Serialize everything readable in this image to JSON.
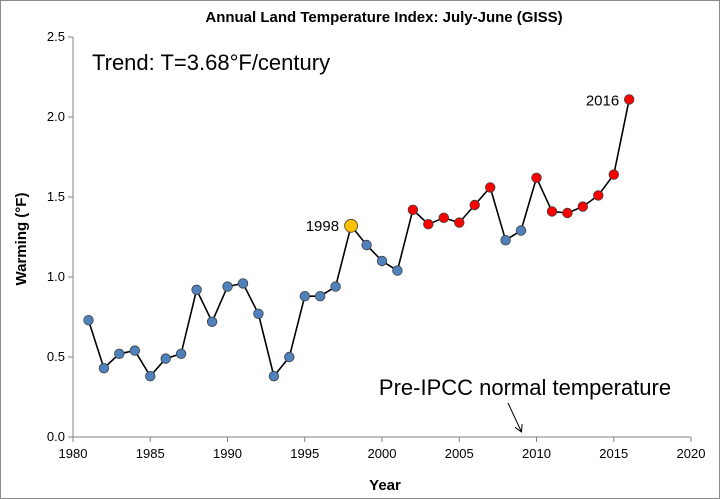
{
  "chart_data": {
    "type": "line",
    "title": "Annual Land Temperature Index: July-June (GISS)",
    "xlabel": "Year",
    "ylabel": "Warming (°F)",
    "xlim": [
      1980,
      2020
    ],
    "ylim": [
      0.0,
      2.5
    ],
    "x_ticks": [
      1980,
      1985,
      1990,
      1995,
      2000,
      2005,
      2010,
      2015,
      2020
    ],
    "y_ticks": [
      "0.0",
      "0.5",
      "1.0",
      "1.5",
      "2.0",
      "2.5"
    ],
    "grid": false,
    "legend": "none",
    "series": [
      {
        "x": [
          1981,
          1982,
          1983,
          1984,
          1985,
          1986,
          1987,
          1988,
          1989,
          1990,
          1991,
          1992,
          1993,
          1994,
          1995,
          1996,
          1997,
          1998,
          1999,
          2000,
          2001,
          2002,
          2003,
          2004,
          2005,
          2006,
          2007,
          2008,
          2009,
          2010,
          2011,
          2012,
          2013,
          2014,
          2015,
          2016
        ],
        "values": [
          0.73,
          0.43,
          0.52,
          0.54,
          0.38,
          0.49,
          0.52,
          0.92,
          0.72,
          0.94,
          0.96,
          0.77,
          0.38,
          0.5,
          0.88,
          0.88,
          0.94,
          1.32,
          1.2,
          1.1,
          1.04,
          1.42,
          1.33,
          1.37,
          1.34,
          1.45,
          1.56,
          1.23,
          1.29,
          1.62,
          1.41,
          1.4,
          1.44,
          1.51,
          1.64,
          2.11
        ],
        "point_colors": [
          "#4f81bd",
          "#4f81bd",
          "#4f81bd",
          "#4f81bd",
          "#4f81bd",
          "#4f81bd",
          "#4f81bd",
          "#4f81bd",
          "#4f81bd",
          "#4f81bd",
          "#4f81bd",
          "#4f81bd",
          "#4f81bd",
          "#4f81bd",
          "#4f81bd",
          "#4f81bd",
          "#4f81bd",
          "#ffc000",
          "#4f81bd",
          "#4f81bd",
          "#4f81bd",
          "#ff0000",
          "#ff0000",
          "#ff0000",
          "#ff0000",
          "#ff0000",
          "#ff0000",
          "#4f81bd",
          "#4f81bd",
          "#ff0000",
          "#ff0000",
          "#ff0000",
          "#ff0000",
          "#ff0000",
          "#ff0000",
          "#ff0000"
        ]
      }
    ],
    "annotations": [
      {
        "text": "Trend: T=3.68°F/century"
      },
      {
        "text": "1998",
        "x": 1998,
        "y": 1.32
      },
      {
        "text": "2016",
        "x": 2016,
        "y": 2.11
      },
      {
        "text": "Pre-IPCC normal temperature",
        "arrow_to": {
          "x": 2009,
          "y": 0.0
        }
      }
    ],
    "colors": {
      "normal_point": "#4f81bd",
      "highlight_1998": "#ffc000",
      "warm_point": "#ff0000",
      "line": "#000000"
    }
  }
}
